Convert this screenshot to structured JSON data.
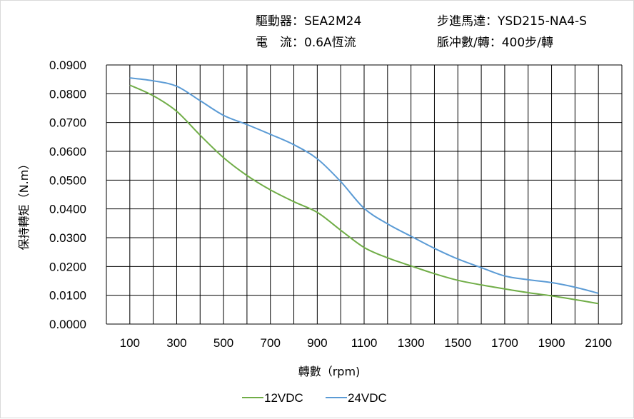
{
  "header": {
    "driver": "驅動器：SEA2M24",
    "motor": "步進馬達：YSD215-NA4-S",
    "current": "電　流：0.6A恆流",
    "pulse": "脈冲數/轉：400步/轉"
  },
  "chart_data": {
    "type": "line",
    "title": "",
    "xlabel": "轉數（rpm)",
    "ylabel": "保持轉矩（N.m）",
    "xlim": [
      0,
      2200
    ],
    "ylim": [
      0,
      0.09
    ],
    "grid": true,
    "legend_position": "bottom",
    "x_ticks": [
      "100",
      "300",
      "500",
      "700",
      "900",
      "1100",
      "1300",
      "1500",
      "1700",
      "1900",
      "2100"
    ],
    "y_ticks": [
      "0.0000",
      "0.0100",
      "0.0200",
      "0.0300",
      "0.0400",
      "0.0500",
      "0.0600",
      "0.0700",
      "0.0800",
      "0.0900"
    ],
    "x": [
      100,
      200,
      300,
      400,
      500,
      600,
      700,
      800,
      900,
      1000,
      1100,
      1200,
      1300,
      1400,
      1500,
      1600,
      1700,
      1800,
      1900,
      2000,
      2100
    ],
    "series": [
      {
        "name": "12VDC",
        "color": "#70ad47",
        "values": [
          0.083,
          0.0793,
          0.0739,
          0.0656,
          0.0578,
          0.0516,
          0.0466,
          0.0425,
          0.0388,
          0.0326,
          0.0266,
          0.023,
          0.0202,
          0.0175,
          0.0152,
          0.0136,
          0.0122,
          0.0109,
          0.0098,
          0.0085,
          0.0071
        ]
      },
      {
        "name": "24VDC",
        "color": "#5b9bd5",
        "values": [
          0.0855,
          0.0845,
          0.0826,
          0.0776,
          0.0725,
          0.0693,
          0.0659,
          0.0623,
          0.0574,
          0.0495,
          0.0402,
          0.0348,
          0.0305,
          0.0263,
          0.0226,
          0.0196,
          0.0167,
          0.0154,
          0.0144,
          0.0128,
          0.0107
        ]
      }
    ]
  }
}
